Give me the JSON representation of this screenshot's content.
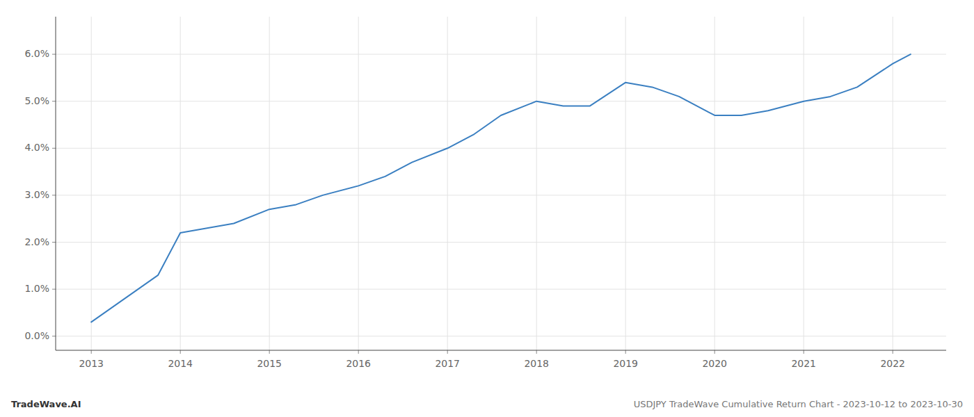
{
  "chart_data": {
    "type": "line",
    "annotations": [
      "TradeWave.AI",
      "USDJPY TradeWave Cumulative Return Chart - 2023-10-12 to 2023-10-30"
    ],
    "x": [
      2013.0,
      2013.75,
      2014.0,
      2014.3,
      2014.6,
      2015.0,
      2015.3,
      2015.6,
      2016.0,
      2016.3,
      2016.6,
      2017.0,
      2017.3,
      2017.6,
      2018.0,
      2018.3,
      2018.6,
      2019.0,
      2019.3,
      2019.6,
      2020.0,
      2020.3,
      2020.6,
      2021.0,
      2021.3,
      2021.6,
      2022.0,
      2022.2
    ],
    "values": [
      0.003,
      0.013,
      0.022,
      0.023,
      0.024,
      0.027,
      0.028,
      0.03,
      0.032,
      0.034,
      0.037,
      0.04,
      0.043,
      0.047,
      0.05,
      0.049,
      0.049,
      0.054,
      0.053,
      0.051,
      0.047,
      0.047,
      0.048,
      0.05,
      0.051,
      0.053,
      0.058,
      0.06
    ],
    "color": "#3a7fc1",
    "xlim": [
      2012.6,
      2022.6
    ],
    "ylim": [
      -0.003,
      0.068
    ],
    "xticks": [
      2013,
      2014,
      2015,
      2016,
      2017,
      2018,
      2019,
      2020,
      2021,
      2022
    ],
    "yticks": [
      {
        "value": 0.0,
        "label": "0.0%"
      },
      {
        "value": 0.01,
        "label": "1.0%"
      },
      {
        "value": 0.02,
        "label": "2.0%"
      },
      {
        "value": 0.03,
        "label": "3.0%"
      },
      {
        "value": 0.04,
        "label": "4.0%"
      },
      {
        "value": 0.05,
        "label": "5.0%"
      },
      {
        "value": 0.06,
        "label": "6.0%"
      }
    ],
    "grid": true
  }
}
